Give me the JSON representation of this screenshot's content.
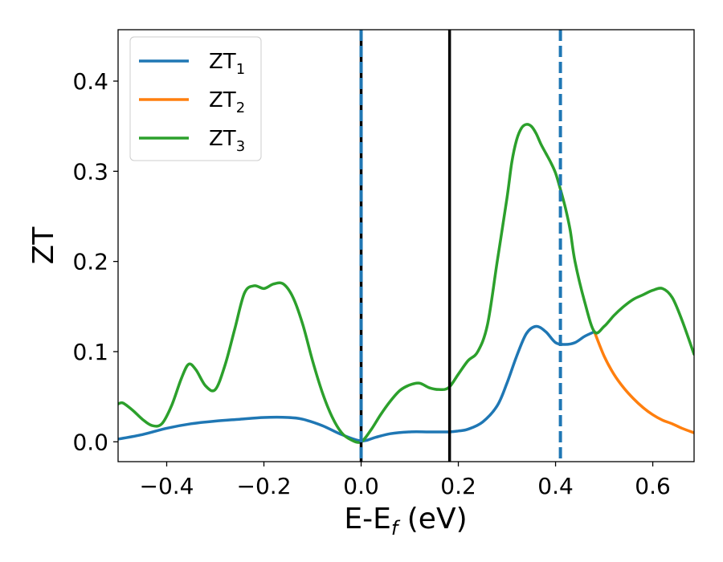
{
  "chart_data": {
    "type": "line",
    "xlabel": "E-E",
    "xlabel_sub": "f",
    "xlabel_unit": " (eV)",
    "ylabel": "ZT",
    "xlim": [
      -0.5,
      0.685
    ],
    "ylim": [
      -0.022,
      0.457
    ],
    "xticks": [
      -0.4,
      -0.2,
      0.0,
      0.2,
      0.4,
      0.6
    ],
    "xtick_labels": [
      "−0.4",
      "−0.2",
      "0.0",
      "0.2",
      "0.4",
      "0.6"
    ],
    "yticks": [
      0.0,
      0.1,
      0.2,
      0.3,
      0.4
    ],
    "ytick_labels": [
      "0.0",
      "0.1",
      "0.2",
      "0.3",
      "0.4"
    ],
    "grid": false,
    "legend_position": "top-left",
    "vlines": [
      {
        "x": 0.0,
        "style": "solid",
        "color": "#000000"
      },
      {
        "x": 0.0,
        "style": "dashed",
        "color": "#1f77b4"
      },
      {
        "x": 0.182,
        "style": "solid",
        "color": "#000000"
      },
      {
        "x": 0.41,
        "style": "dashed",
        "color": "#1f77b4"
      }
    ],
    "series": [
      {
        "name": "ZT",
        "sub": "1",
        "color": "#1f77b4",
        "x": [
          -0.5,
          -0.45,
          -0.4,
          -0.35,
          -0.3,
          -0.25,
          -0.2,
          -0.15,
          -0.12,
          -0.08,
          -0.04,
          0.0,
          0.03,
          0.06,
          0.1,
          0.14,
          0.18,
          0.2,
          0.22,
          0.25,
          0.28,
          0.3,
          0.32,
          0.34,
          0.36,
          0.38,
          0.4,
          0.42,
          0.44,
          0.46,
          0.48
        ],
        "y": [
          0.003,
          0.008,
          0.015,
          0.02,
          0.023,
          0.025,
          0.027,
          0.027,
          0.025,
          0.018,
          0.008,
          0.001,
          0.005,
          0.009,
          0.011,
          0.011,
          0.011,
          0.012,
          0.014,
          0.022,
          0.04,
          0.065,
          0.095,
          0.12,
          0.128,
          0.122,
          0.11,
          0.108,
          0.11,
          0.117,
          0.122
        ]
      },
      {
        "name": "ZT",
        "sub": "2",
        "color": "#ff7f0e",
        "x": [
          0.48,
          0.5,
          0.52,
          0.54,
          0.56,
          0.58,
          0.6,
          0.62,
          0.64,
          0.66,
          0.685
        ],
        "y": [
          0.122,
          0.095,
          0.075,
          0.06,
          0.048,
          0.038,
          0.03,
          0.024,
          0.02,
          0.015,
          0.01
        ]
      },
      {
        "name": "ZT",
        "sub": "3",
        "color": "#2ca02c",
        "x": [
          -0.5,
          -0.49,
          -0.47,
          -0.45,
          -0.43,
          -0.41,
          -0.39,
          -0.37,
          -0.355,
          -0.34,
          -0.32,
          -0.3,
          -0.28,
          -0.26,
          -0.24,
          -0.22,
          -0.2,
          -0.18,
          -0.16,
          -0.14,
          -0.12,
          -0.1,
          -0.08,
          -0.06,
          -0.04,
          -0.02,
          0.0,
          0.02,
          0.04,
          0.06,
          0.08,
          0.1,
          0.12,
          0.14,
          0.16,
          0.18,
          0.2,
          0.22,
          0.24,
          0.26,
          0.28,
          0.3,
          0.31,
          0.32,
          0.33,
          0.34,
          0.35,
          0.36,
          0.37,
          0.38,
          0.39,
          0.4,
          0.41,
          0.42,
          0.43,
          0.44,
          0.46,
          0.48,
          0.5,
          0.52,
          0.54,
          0.56,
          0.58,
          0.6,
          0.62,
          0.64,
          0.66,
          0.685
        ],
        "y": [
          0.042,
          0.043,
          0.035,
          0.025,
          0.018,
          0.02,
          0.04,
          0.07,
          0.086,
          0.08,
          0.062,
          0.058,
          0.085,
          0.125,
          0.165,
          0.173,
          0.17,
          0.175,
          0.175,
          0.16,
          0.13,
          0.09,
          0.055,
          0.028,
          0.01,
          0.002,
          0.0,
          0.013,
          0.03,
          0.045,
          0.057,
          0.063,
          0.065,
          0.06,
          0.058,
          0.06,
          0.075,
          0.09,
          0.1,
          0.13,
          0.2,
          0.27,
          0.31,
          0.335,
          0.348,
          0.352,
          0.35,
          0.342,
          0.33,
          0.32,
          0.31,
          0.298,
          0.28,
          0.26,
          0.235,
          0.2,
          0.155,
          0.122,
          0.128,
          0.14,
          0.15,
          0.158,
          0.163,
          0.168,
          0.17,
          0.16,
          0.135,
          0.097
        ]
      }
    ]
  }
}
